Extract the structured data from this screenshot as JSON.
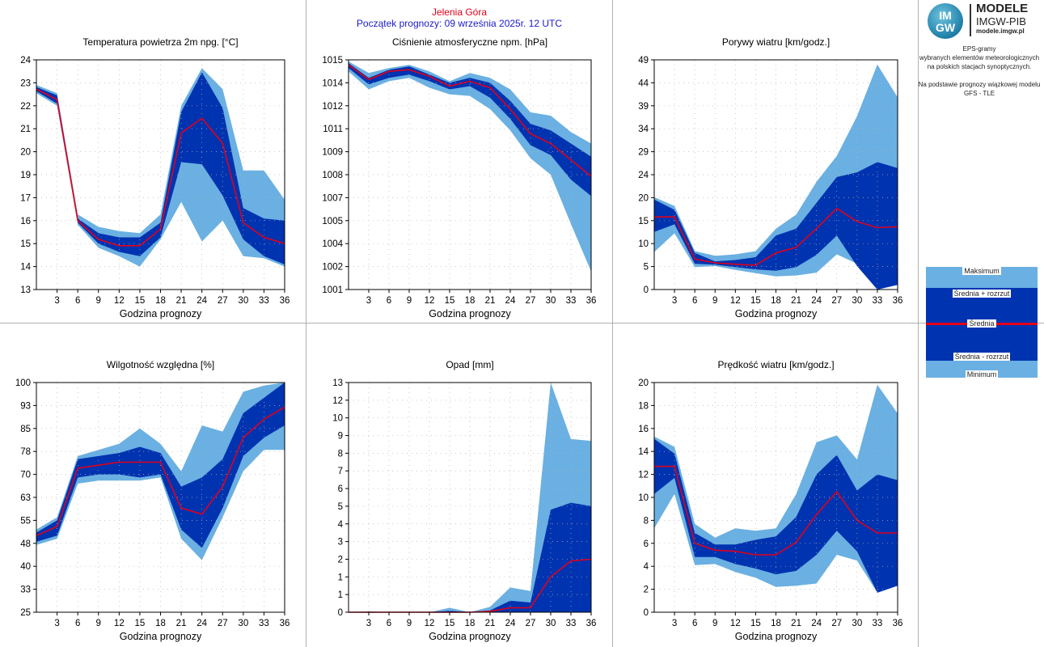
{
  "header": {
    "station": "Jelenia Góra",
    "forecast_start": "Początek prognozy: 09 września 2025r. 12 UTC"
  },
  "logo": {
    "badge_top": "IM",
    "badge_bottom": "GW",
    "title": "MODELE",
    "subtitle": "IMGW-PIB",
    "url": "modele.imgw.pl"
  },
  "description": {
    "line1": "EPS-gramy",
    "line2": "wybranych elementów meteorologicznych",
    "line3": "na polskich stacjach  synoptycznych.",
    "line4": "Na podstawie prognozy wiązkowej modelu",
    "line5": "GFS - TLE"
  },
  "legend": {
    "max": "Maksimum",
    "mean_plus": "Średnia + rozrzut",
    "mean": "Średnia",
    "mean_minus": "Średnia - rozrzut",
    "min": "Minimum"
  },
  "colors": {
    "envelope_light": "#6ab0e2",
    "envelope_dark": "#0033b0",
    "mean_line": "#e2001a",
    "grid": "#b4b4b4",
    "title_red": "#e2001a",
    "subtitle_blue": "#1a1acd"
  },
  "chart_data": [
    {
      "type": "area",
      "title": "Temperatura powietrza 2m npg. [°C]",
      "xlabel": "Godzina prognozy",
      "ylim": [
        13,
        24
      ],
      "yticks": [
        "13",
        "14",
        "15",
        "16",
        "17",
        "19",
        "20",
        "21",
        "22",
        "23",
        "24"
      ],
      "x": [
        0,
        3,
        6,
        9,
        12,
        15,
        18,
        21,
        24,
        27,
        30,
        33,
        36
      ],
      "xticks": [
        3,
        6,
        9,
        12,
        15,
        18,
        21,
        24,
        27,
        30,
        33,
        36
      ],
      "max": [
        22.8,
        22.4,
        16.6,
        16.0,
        15.8,
        15.7,
        16.6,
        21.8,
        23.6,
        22.6,
        18.7,
        18.7,
        17.3
      ],
      "mean_plus": [
        22.7,
        22.3,
        16.4,
        15.7,
        15.5,
        15.5,
        16.2,
        21.5,
        23.4,
        21.7,
        16.9,
        16.4,
        16.3
      ],
      "mean": [
        22.6,
        22.1,
        16.3,
        15.4,
        15.1,
        15.1,
        15.9,
        20.5,
        21.2,
        20.0,
        16.2,
        15.5,
        15.2
      ],
      "mean_minus": [
        22.5,
        21.9,
        16.2,
        15.2,
        14.8,
        14.6,
        15.5,
        19.1,
        19.0,
        17.5,
        15.4,
        14.6,
        14.2
      ],
      "min": [
        22.4,
        21.8,
        16.1,
        15.0,
        14.6,
        14.1,
        15.4,
        17.2,
        15.3,
        16.3,
        14.6,
        14.5,
        14.1
      ]
    },
    {
      "type": "area",
      "title": "Ciśnienie atmosferyczne npm. [hPa]",
      "xlabel": "Godzina prognozy",
      "ylim": [
        1001,
        1015
      ],
      "yticks": [
        "1001",
        "1002",
        "1004",
        "1005",
        "1007",
        "1008",
        "1009",
        "1011",
        "1012",
        "1014",
        "1015"
      ],
      "x": [
        0,
        3,
        6,
        9,
        12,
        15,
        18,
        21,
        24,
        27,
        30,
        33,
        36
      ],
      "xticks": [
        3,
        6,
        9,
        12,
        15,
        18,
        21,
        24,
        27,
        30,
        33,
        36
      ],
      "max": [
        1014.9,
        1014.2,
        1014.5,
        1014.7,
        1014.3,
        1013.7,
        1014.2,
        1013.9,
        1013.2,
        1011.8,
        1011.6,
        1010.6,
        1009.9
      ],
      "mean_plus": [
        1014.8,
        1013.9,
        1014.4,
        1014.6,
        1014.1,
        1013.6,
        1013.9,
        1013.6,
        1012.5,
        1011.1,
        1010.7,
        1009.9,
        1009.1
      ],
      "mean": [
        1014.7,
        1013.8,
        1014.3,
        1014.4,
        1014.0,
        1013.4,
        1013.7,
        1013.3,
        1012.0,
        1010.5,
        1009.9,
        1008.9,
        1007.9
      ],
      "mean_minus": [
        1014.5,
        1013.5,
        1013.9,
        1014.1,
        1013.7,
        1013.2,
        1013.4,
        1012.7,
        1011.4,
        1009.8,
        1009.2,
        1007.7,
        1006.7
      ],
      "min": [
        1014.3,
        1013.2,
        1013.7,
        1013.9,
        1013.3,
        1012.9,
        1012.8,
        1012.0,
        1010.7,
        1009.0,
        1008.0,
        1005.0,
        1002.1
      ]
    },
    {
      "type": "area",
      "title": "Porywy wiatru [km/godz.]",
      "xlabel": "Godzina prognozy",
      "ylim": [
        0,
        49
      ],
      "yticks": [
        "0",
        "5",
        "10",
        "15",
        "20",
        "24",
        "29",
        "34",
        "39",
        "44",
        "49"
      ],
      "x": [
        0,
        3,
        6,
        9,
        12,
        15,
        18,
        21,
        24,
        27,
        30,
        33,
        36
      ],
      "xticks": [
        3,
        6,
        9,
        12,
        15,
        18,
        21,
        24,
        27,
        30,
        33,
        36
      ],
      "max": [
        19.7,
        17.8,
        8.2,
        7.2,
        7.5,
        8.2,
        13.0,
        16.0,
        23.0,
        28.5,
        37.0,
        48.0,
        41.0
      ],
      "mean_plus": [
        19.2,
        17.0,
        7.8,
        6.0,
        6.3,
        6.9,
        11.5,
        13.0,
        18.5,
        24.0,
        25.0,
        27.2,
        25.9
      ],
      "mean": [
        15.5,
        15.5,
        6.5,
        5.7,
        5.4,
        5.2,
        7.8,
        9.0,
        13.0,
        17.3,
        14.5,
        13.2,
        13.4
      ],
      "mean_minus": [
        12.3,
        13.9,
        5.5,
        5.3,
        4.8,
        4.3,
        4.0,
        4.8,
        7.4,
        11.5,
        5.0,
        0.0,
        1.0
      ],
      "min": [
        8.0,
        12.0,
        4.8,
        5.0,
        4.2,
        3.5,
        2.8,
        3.0,
        3.6,
        7.5,
        5.5,
        0.0,
        1.0
      ]
    },
    {
      "type": "area",
      "title": "Wilgotność względna [%]",
      "xlabel": "Godzina prognozy",
      "ylim": [
        25,
        100
      ],
      "yticks": [
        "25",
        "33",
        "40",
        "48",
        "55",
        "63",
        "70",
        "78",
        "85",
        "93",
        "100"
      ],
      "x": [
        0,
        3,
        6,
        9,
        12,
        15,
        18,
        21,
        24,
        27,
        30,
        33,
        36
      ],
      "xticks": [
        3,
        6,
        9,
        12,
        15,
        18,
        21,
        24,
        27,
        30,
        33,
        36
      ],
      "max": [
        52,
        56,
        76,
        78,
        80,
        85,
        80,
        71,
        86,
        84,
        97,
        99,
        100
      ],
      "mean_plus": [
        51,
        55,
        75,
        76,
        77,
        79,
        77,
        66,
        69,
        75,
        90,
        95,
        100
      ],
      "mean": [
        50,
        53,
        72,
        73,
        74,
        74,
        74,
        59,
        57,
        66,
        82,
        88,
        92
      ],
      "mean_minus": [
        48,
        50,
        69,
        70,
        70,
        69,
        70,
        52,
        46,
        59,
        76,
        82,
        86
      ],
      "min": [
        47,
        49,
        67,
        68,
        68,
        68,
        69,
        49,
        42,
        56,
        71,
        78,
        78
      ]
    },
    {
      "type": "area",
      "title": "Opad [mm]",
      "xlabel": "Godzina prognozy",
      "ylim": [
        0,
        13
      ],
      "yticks": [
        "0",
        "1",
        "1",
        "2",
        "3",
        "4",
        "5",
        "6",
        "7",
        "8",
        "9",
        "10",
        "12",
        "13"
      ],
      "x": [
        0,
        3,
        6,
        9,
        12,
        15,
        18,
        21,
        24,
        27,
        30,
        33,
        36
      ],
      "xticks": [
        3,
        6,
        9,
        12,
        15,
        18,
        21,
        24,
        27,
        30,
        33,
        36
      ],
      "max": [
        0.0,
        0.05,
        0.0,
        0.0,
        0.0,
        0.25,
        0.0,
        0.3,
        1.4,
        1.2,
        13.0,
        9.8,
        9.7
      ],
      "mean_plus": [
        0.0,
        0.02,
        0.0,
        0.0,
        0.0,
        0.08,
        0.0,
        0.1,
        0.65,
        0.55,
        5.8,
        6.2,
        6.0
      ],
      "mean": [
        0.0,
        0.0,
        0.0,
        0.0,
        0.0,
        0.0,
        0.0,
        0.05,
        0.25,
        0.25,
        2.0,
        2.9,
        3.0
      ],
      "mean_minus": [
        0.0,
        0.0,
        0.0,
        0.0,
        0.0,
        0.0,
        0.0,
        0.0,
        0.0,
        0.0,
        0.0,
        0.0,
        0.0
      ],
      "min": [
        0.0,
        0.0,
        0.0,
        0.0,
        0.0,
        0.0,
        0.0,
        0.0,
        0.0,
        0.0,
        0.0,
        0.0,
        0.0
      ]
    },
    {
      "type": "area",
      "title": "Prędkość wiatru [km/godz.]",
      "xlabel": "Godzina prognozy",
      "ylim": [
        0,
        20
      ],
      "yticks": [
        "0",
        "2",
        "4",
        "6",
        "8",
        "10",
        "12",
        "14",
        "16",
        "18",
        "20"
      ],
      "x": [
        0,
        3,
        6,
        9,
        12,
        15,
        18,
        21,
        24,
        27,
        30,
        33,
        36
      ],
      "xticks": [
        3,
        6,
        9,
        12,
        15,
        18,
        21,
        24,
        27,
        30,
        33,
        36
      ],
      "max": [
        15.3,
        14.4,
        7.7,
        6.5,
        7.3,
        7.1,
        7.3,
        10.3,
        14.8,
        15.4,
        13.3,
        19.8,
        17.3
      ],
      "mean_plus": [
        15.1,
        13.8,
        6.9,
        5.9,
        5.9,
        6.3,
        6.6,
        8.3,
        12.0,
        13.7,
        10.6,
        12.0,
        11.5
      ],
      "mean": [
        12.7,
        12.7,
        6.0,
        5.4,
        5.3,
        5.0,
        5.0,
        6.1,
        8.5,
        10.5,
        8.0,
        6.9,
        6.9
      ],
      "mean_minus": [
        10.3,
        11.7,
        4.8,
        4.8,
        4.2,
        3.8,
        3.3,
        3.6,
        5.0,
        7.1,
        5.3,
        1.7,
        2.3
      ],
      "min": [
        7.3,
        10.3,
        4.1,
        4.2,
        3.5,
        3.0,
        2.2,
        2.3,
        2.5,
        5.0,
        4.5,
        1.7,
        2.3
      ]
    }
  ]
}
